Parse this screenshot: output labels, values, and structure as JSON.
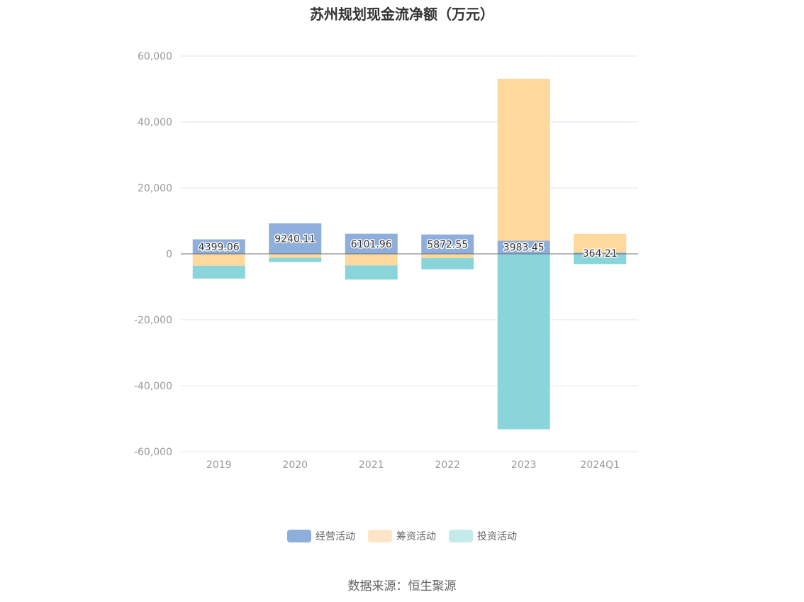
{
  "chart_data": {
    "type": "bar",
    "stacked": true,
    "title": "苏州规划现金流净额（万元）",
    "categories": [
      "2019",
      "2020",
      "2021",
      "2022",
      "2023",
      "2024Q1"
    ],
    "series": [
      {
        "name": "经营活动",
        "color": "#8eaedb",
        "values": [
          4399.06,
          9240.11,
          6101.96,
          5872.55,
          3983.45,
          364.21
        ]
      },
      {
        "name": "筹资活动",
        "color": "#fed89c",
        "values": [
          -3600,
          -1200,
          -3500,
          -1300,
          49100,
          5700
        ]
      },
      {
        "name": "投资活动",
        "color": "#89d5d9",
        "values": [
          -3900,
          -1300,
          -4300,
          -3400,
          -53200,
          -3100
        ]
      }
    ],
    "data_labels": [
      "4399.06",
      "9240.11",
      "6101.96",
      "5872.55",
      "3983.45",
      "364.21"
    ],
    "y_ticks": [
      "60,000",
      "40,000",
      "20,000",
      "0",
      "-20,000",
      "-40,000",
      "-60,000"
    ],
    "ylim": [
      -60000,
      60000
    ],
    "grid": true,
    "legend_position": "bottom"
  },
  "legend_colors": {
    "经营活动": "#8eaedb",
    "筹资活动": "#fde5c5",
    "投资活动": "#c5eaec"
  },
  "source": "数据来源：恒生聚源"
}
